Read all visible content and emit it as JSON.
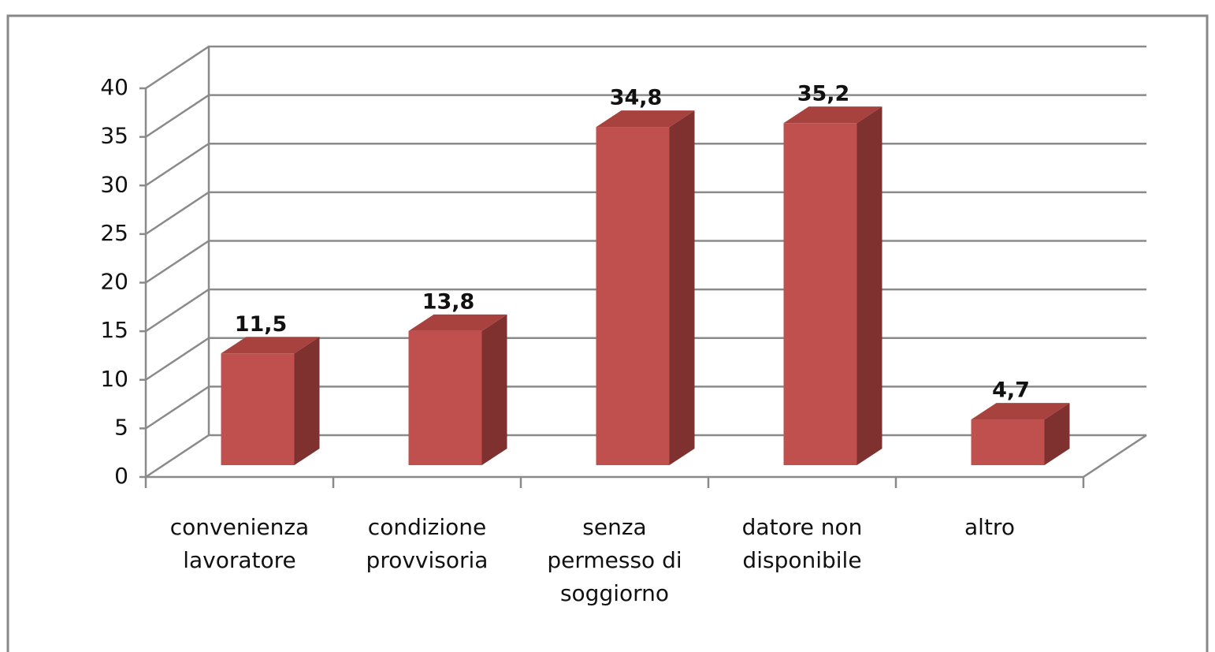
{
  "chart_data": {
    "type": "bar3d",
    "categories": [
      "convenienza\nlavoratore",
      "condizione\nprovvisoria",
      "senza\npermesso di\nsoggiorno",
      "datore non\ndisponibile",
      "altro"
    ],
    "values": [
      11.5,
      13.8,
      34.8,
      35.2,
      4.7
    ],
    "value_labels": [
      "11,5",
      "13,8",
      "34,8",
      "35,2",
      "4,7"
    ],
    "color": "#c0504d",
    "ylim": [
      0,
      40
    ],
    "yticks": [
      0,
      5,
      10,
      15,
      20,
      25,
      30,
      35,
      40
    ],
    "grid": true
  }
}
